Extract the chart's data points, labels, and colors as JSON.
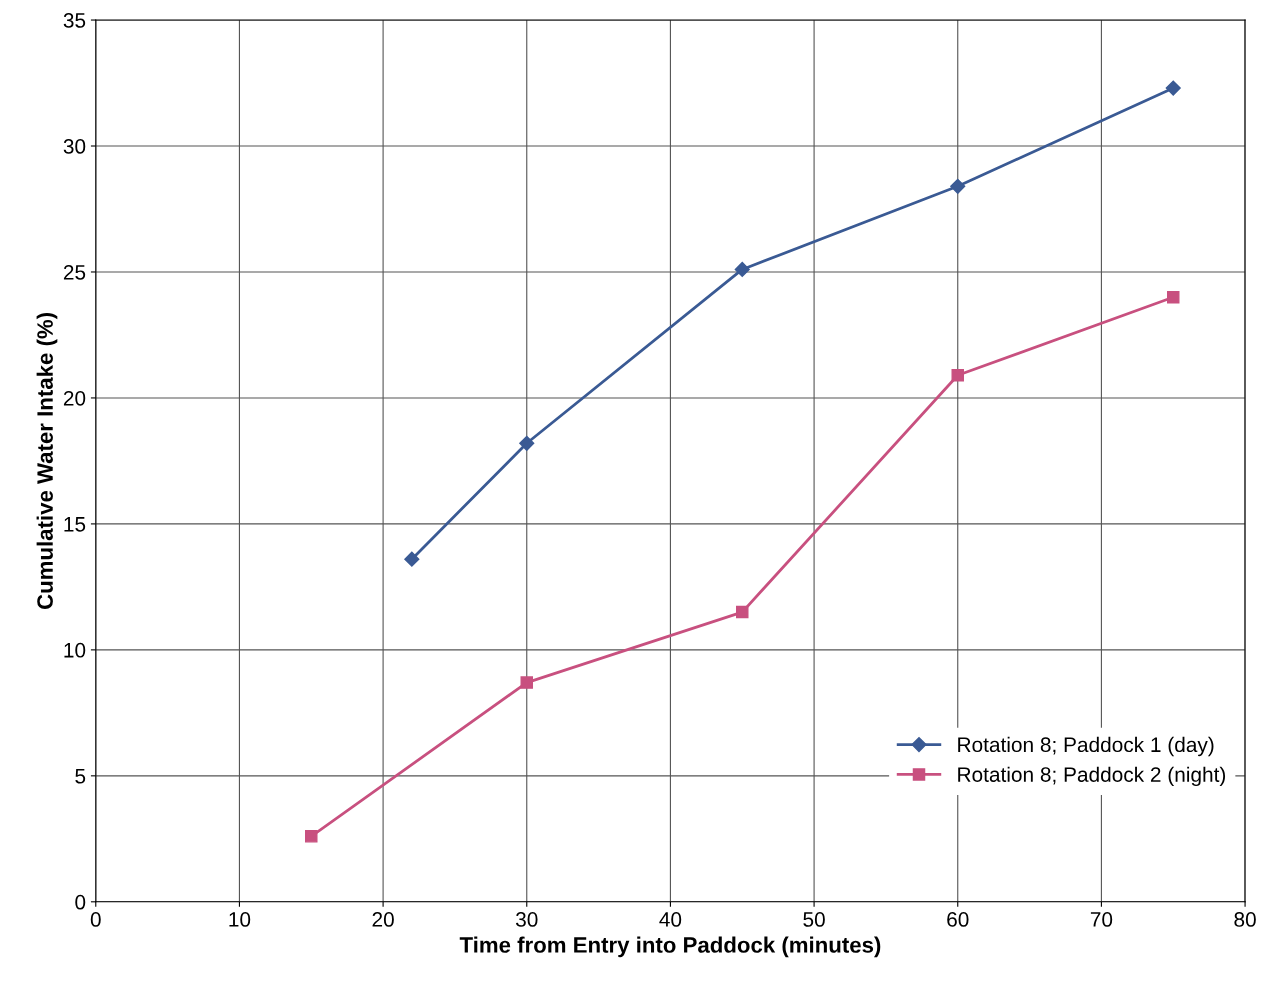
{
  "chart_data": {
    "type": "line",
    "xlabel": "Time from Entry into Paddock (minutes)",
    "ylabel": "Cumulative Water Intake (%)",
    "xlim": [
      0,
      80
    ],
    "xticks": [
      0,
      10,
      20,
      30,
      40,
      50,
      60,
      70,
      80
    ],
    "ylim": [
      0,
      35
    ],
    "yticks": [
      0,
      5,
      10,
      15,
      20,
      25,
      30,
      35
    ],
    "grid": true,
    "legend": "bottom right",
    "line_style": "solid",
    "series": [
      {
        "name": "Rotation 8; Paddock 1 (day)",
        "color": "#3a5a94",
        "marker": "diamond",
        "x": [
          22,
          30,
          45,
          60,
          75
        ],
        "values": [
          13.6,
          18.2,
          25.1,
          28.4,
          32.3
        ]
      },
      {
        "name": "Rotation 8; Paddock 2 (night)",
        "color": "#c8507f",
        "marker": "square",
        "x": [
          15,
          30,
          45,
          60,
          75
        ],
        "values": [
          2.6,
          8.7,
          11.5,
          20.9,
          24.0
        ]
      }
    ]
  }
}
